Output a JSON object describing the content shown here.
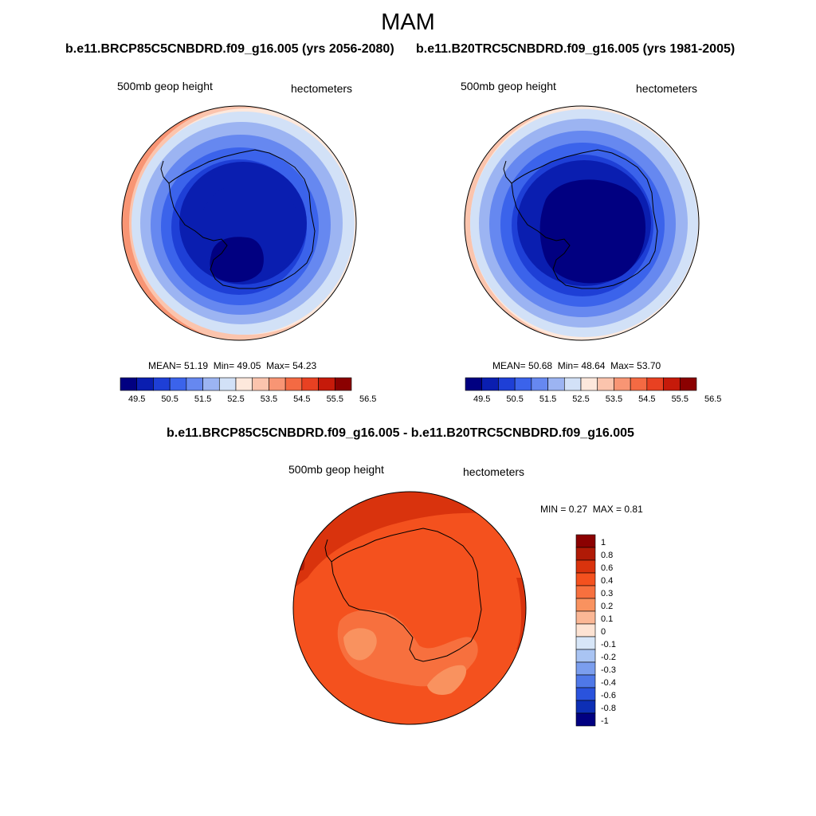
{
  "figure": {
    "title": "MAM"
  },
  "panels": [
    {
      "title": "b.e11.BRCP85C5CNBDRD.f09_g16.005 (yrs 2056-2080)",
      "left_label": "500mb geop height",
      "right_label": "hectometers",
      "stats": {
        "mean_label": "MEAN=",
        "mean": "51.19",
        "min_label": "Min=",
        "min": "49.05",
        "max_label": "Max=",
        "max": "54.23"
      }
    },
    {
      "title": "b.e11.B20TRC5CNBDRD.f09_g16.005 (yrs 1981-2005)",
      "left_label": "500mb geop height",
      "right_label": "hectometers",
      "stats": {
        "mean_label": "MEAN=",
        "mean": "50.68",
        "min_label": "Min=",
        "min": "48.64",
        "max_label": "Max=",
        "max": "53.70"
      }
    },
    {
      "title": "b.e11.BRCP85C5CNBDRD.f09_g16.005 - b.e11.B20TRC5CNBDRD.f09_g16.005",
      "left_label": "500mb geop height",
      "right_label": "hectometers",
      "stats": {
        "min_label": "MIN =",
        "min": "0.27",
        "max_label": "MAX =",
        "max": "0.81"
      }
    }
  ],
  "chart_data": [
    {
      "type": "heatmap",
      "projection": "south-polar-stereographic",
      "panel": "b.e11.BRCP85C5CNBDRD.f09_g16.005 (yrs 2056-2080)",
      "variable": "500mb geop height",
      "units": "hectometers",
      "colorbar_orientation": "horizontal",
      "colorbar_ticks": [
        "49.5",
        "50.5",
        "51.5",
        "52.5",
        "53.5",
        "54.5",
        "55.5",
        "56.5"
      ],
      "colorbar_colors": [
        "#010081",
        "#0a1eb0",
        "#1e3fd6",
        "#3b63eb",
        "#6688f0",
        "#9cb4f2",
        "#d2e1f7",
        "#fde8dc",
        "#fbc4ad",
        "#f89574",
        "#f46a43",
        "#e84122",
        "#c61a0a",
        "#8b0101"
      ],
      "mean": 51.19,
      "min": 49.05,
      "max": 54.23
    },
    {
      "type": "heatmap",
      "projection": "south-polar-stereographic",
      "panel": "b.e11.B20TRC5CNBDRD.f09_g16.005 (yrs 1981-2005)",
      "variable": "500mb geop height",
      "units": "hectometers",
      "colorbar_orientation": "horizontal",
      "colorbar_ticks": [
        "49.5",
        "50.5",
        "51.5",
        "52.5",
        "53.5",
        "54.5",
        "55.5",
        "56.5"
      ],
      "colorbar_colors": [
        "#010081",
        "#0a1eb0",
        "#1e3fd6",
        "#3b63eb",
        "#6688f0",
        "#9cb4f2",
        "#d2e1f7",
        "#fde8dc",
        "#fbc4ad",
        "#f89574",
        "#f46a43",
        "#e84122",
        "#c61a0a",
        "#8b0101"
      ],
      "mean": 50.68,
      "min": 48.64,
      "max": 53.7
    },
    {
      "type": "heatmap",
      "projection": "south-polar-stereographic",
      "panel": "difference",
      "variable": "500mb geop height",
      "units": "hectometers",
      "colorbar_orientation": "vertical",
      "colorbar_ticks": [
        "1",
        "0.8",
        "0.6",
        "0.4",
        "0.3",
        "0.2",
        "0.1",
        "0",
        "-0.1",
        "-0.2",
        "-0.3",
        "-0.4",
        "-0.6",
        "-0.8",
        "-1"
      ],
      "colorbar_colors": [
        "#8b0101",
        "#b01a06",
        "#d9330d",
        "#f4511e",
        "#f7703e",
        "#f9925f",
        "#fbb795",
        "#fde3d3",
        "#d7e6f8",
        "#a9c4f3",
        "#7b9eee",
        "#4f78e8",
        "#2a53dd",
        "#0d2fb5",
        "#010081"
      ],
      "min": 0.27,
      "max": 0.81
    }
  ]
}
